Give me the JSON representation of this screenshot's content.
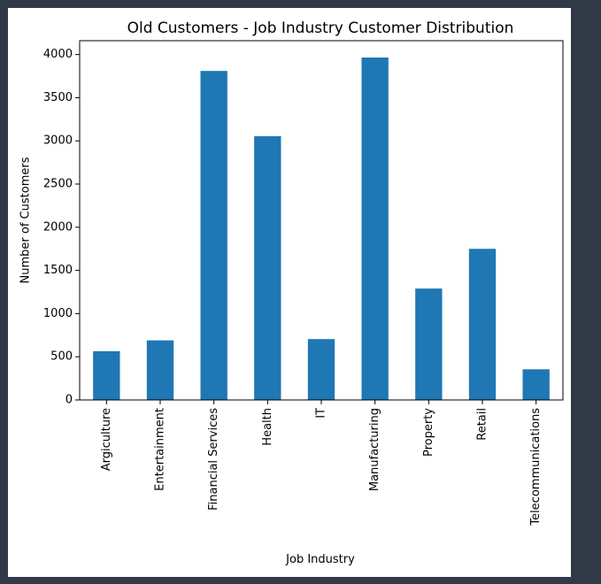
{
  "colors": {
    "background": "#333a47",
    "panel": "#ffffff",
    "bar": "#1f77b4"
  },
  "chart_data": {
    "type": "bar",
    "title": "Old Customers - Job Industry Customer Distribution",
    "xlabel": "Job Industry",
    "ylabel": "Number of Customers",
    "categories": [
      "Argiculture",
      "Entertainment",
      "Financial Services",
      "Health",
      "IT",
      "Manufacturing",
      "Property",
      "Retail",
      "Telecommunications"
    ],
    "values": [
      565,
      690,
      3810,
      3055,
      705,
      3965,
      1290,
      1750,
      355
    ],
    "ylim": [
      0,
      4160
    ],
    "yticks": [
      0,
      500,
      1000,
      1500,
      2000,
      2500,
      3000,
      3500,
      4000
    ],
    "ytick_labels": [
      "0",
      "500",
      "1000",
      "1500",
      "2000",
      "2500",
      "3000",
      "3500",
      "4000"
    ],
    "grid": false,
    "legend": "none"
  }
}
